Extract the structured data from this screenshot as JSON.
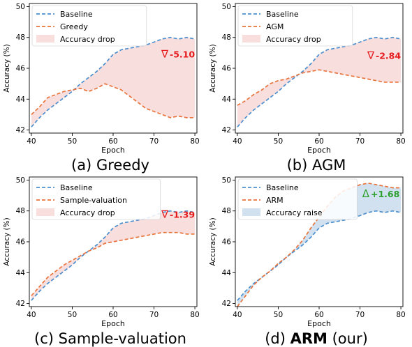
{
  "chart_data": [
    {
      "type": "line",
      "caption_tag": "(a)",
      "caption_text": "Greedy",
      "xlabel": "Epoch",
      "ylabel": "Accuracy (%)",
      "xlim": [
        39.5,
        80.5
      ],
      "ylim": [
        41.8,
        50.2
      ],
      "xticks": [
        "40",
        "50",
        "60",
        "70",
        "80"
      ],
      "yticks": [
        "42",
        "44",
        "46",
        "48",
        "50"
      ],
      "grid": false,
      "legend_position": "upper-left",
      "fill_label": "Accuracy drop",
      "fill_color": "#f9dede",
      "delta": {
        "text": "-5.10",
        "symbol": "∇",
        "color": "#e41a1c",
        "x": 73.5,
        "y": 46.7
      },
      "series": [
        {
          "name": "Baseline",
          "color": "#4c8fcf",
          "x": [
            40,
            42,
            44,
            46,
            48,
            50,
            52,
            54,
            56,
            58,
            60,
            62,
            64,
            66,
            68,
            70,
            72,
            74,
            76,
            78,
            80
          ],
          "y": [
            42.2,
            42.8,
            43.3,
            43.7,
            44.1,
            44.5,
            45.0,
            45.4,
            45.8,
            46.3,
            46.9,
            47.2,
            47.3,
            47.4,
            47.5,
            47.7,
            47.9,
            48.0,
            47.9,
            48.0,
            47.9
          ]
        },
        {
          "name": "Greedy",
          "color": "#e8743b",
          "x": [
            40,
            42,
            44,
            46,
            48,
            50,
            52,
            54,
            56,
            58,
            60,
            62,
            64,
            66,
            68,
            70,
            72,
            74,
            76,
            78,
            80
          ],
          "y": [
            43.0,
            43.5,
            44.1,
            44.3,
            44.5,
            44.6,
            44.7,
            44.5,
            44.7,
            45.0,
            44.8,
            44.6,
            44.2,
            43.8,
            43.4,
            43.2,
            43.0,
            42.8,
            42.9,
            42.8,
            42.8
          ]
        }
      ]
    },
    {
      "type": "line",
      "caption_tag": "(b)",
      "caption_text": "AGM",
      "xlabel": "Epoch",
      "ylabel": "Accuracy (%)",
      "xlim": [
        39.5,
        80.5
      ],
      "ylim": [
        41.8,
        50.2
      ],
      "xticks": [
        "40",
        "50",
        "60",
        "70",
        "80"
      ],
      "yticks": [
        "42",
        "44",
        "46",
        "48",
        "50"
      ],
      "grid": false,
      "legend_position": "upper-left",
      "fill_label": "Accuracy drop",
      "fill_color": "#f9dede",
      "delta": {
        "text": "-2.84",
        "symbol": "∇",
        "color": "#e41a1c",
        "x": 73.5,
        "y": 46.6
      },
      "series": [
        {
          "name": "Baseline",
          "color": "#4c8fcf",
          "x": [
            40,
            42,
            44,
            46,
            48,
            50,
            52,
            54,
            56,
            58,
            60,
            62,
            64,
            66,
            68,
            70,
            72,
            74,
            76,
            78,
            80
          ],
          "y": [
            42.2,
            42.8,
            43.3,
            43.7,
            44.1,
            44.5,
            45.0,
            45.4,
            45.8,
            46.3,
            46.9,
            47.2,
            47.3,
            47.4,
            47.5,
            47.7,
            47.9,
            48.0,
            47.9,
            48.0,
            47.9
          ]
        },
        {
          "name": "AGM",
          "color": "#e8743b",
          "x": [
            40,
            42,
            44,
            46,
            48,
            50,
            52,
            54,
            56,
            58,
            60,
            62,
            64,
            66,
            68,
            70,
            72,
            74,
            76,
            78,
            80
          ],
          "y": [
            43.6,
            43.9,
            44.3,
            44.6,
            45.0,
            45.2,
            45.3,
            45.5,
            45.7,
            45.8,
            45.9,
            45.8,
            45.7,
            45.6,
            45.5,
            45.4,
            45.3,
            45.2,
            45.1,
            45.1,
            45.1
          ]
        }
      ]
    },
    {
      "type": "line",
      "caption_tag": "(c)",
      "caption_text": "Sample-valuation",
      "xlabel": "Epoch",
      "ylabel": "Accuracy (%)",
      "xlim": [
        39.5,
        80.5
      ],
      "ylim": [
        41.8,
        50.2
      ],
      "xticks": [
        "40",
        "50",
        "60",
        "70",
        "80"
      ],
      "yticks": [
        "42",
        "44",
        "46",
        "48",
        "50"
      ],
      "grid": false,
      "legend_position": "upper-left",
      "fill_label": "Accuracy drop",
      "fill_color": "#f9dede",
      "delta": {
        "text": "-1.39",
        "symbol": "∇",
        "color": "#e41a1c",
        "x": 73.5,
        "y": 47.55
      },
      "series": [
        {
          "name": "Baseline",
          "color": "#4c8fcf",
          "x": [
            40,
            42,
            44,
            46,
            48,
            50,
            52,
            54,
            56,
            58,
            60,
            62,
            64,
            66,
            68,
            70,
            72,
            74,
            76,
            78,
            80
          ],
          "y": [
            42.2,
            42.8,
            43.3,
            43.7,
            44.1,
            44.5,
            45.0,
            45.4,
            45.8,
            46.3,
            46.9,
            47.2,
            47.3,
            47.4,
            47.5,
            47.7,
            47.9,
            48.0,
            47.9,
            48.0,
            47.9
          ]
        },
        {
          "name": "Sample-valuation",
          "color": "#e8743b",
          "x": [
            40,
            42,
            44,
            46,
            48,
            50,
            52,
            54,
            56,
            58,
            60,
            62,
            64,
            66,
            68,
            70,
            72,
            74,
            76,
            78,
            80
          ],
          "y": [
            42.5,
            43.1,
            43.7,
            44.1,
            44.5,
            44.8,
            45.1,
            45.4,
            45.6,
            45.9,
            46.0,
            46.1,
            46.2,
            46.3,
            46.4,
            46.5,
            46.6,
            46.6,
            46.6,
            46.5,
            46.5
          ]
        }
      ]
    },
    {
      "type": "line",
      "caption_tag": "(d)",
      "caption_text": "ARM",
      "caption_suffix": "(our)",
      "xlabel": "Epoch",
      "ylabel": "Accuracy (%)",
      "xlim": [
        39.5,
        80.5
      ],
      "ylim": [
        41.8,
        50.2
      ],
      "xticks": [
        "40",
        "50",
        "60",
        "70",
        "80"
      ],
      "yticks": [
        "42",
        "44",
        "46",
        "48",
        "50"
      ],
      "grid": false,
      "legend_position": "upper-left",
      "fill_label": "Accuracy raise",
      "fill_color": "#d2e1ef",
      "delta": {
        "text": "+1.68",
        "symbol": "Δ",
        "color": "#2ca02c",
        "x": 72.3,
        "y": 48.9
      },
      "series": [
        {
          "name": "Baseline",
          "color": "#4c8fcf",
          "x": [
            40,
            42,
            44,
            46,
            48,
            50,
            52,
            54,
            56,
            58,
            60,
            62,
            64,
            66,
            68,
            70,
            72,
            74,
            76,
            78,
            80
          ],
          "y": [
            42.2,
            42.8,
            43.3,
            43.7,
            44.1,
            44.5,
            45.0,
            45.4,
            45.8,
            46.3,
            46.9,
            47.2,
            47.3,
            47.4,
            47.5,
            47.7,
            47.9,
            48.0,
            47.9,
            48.0,
            47.9
          ]
        },
        {
          "name": "ARM",
          "color": "#e8743b",
          "x": [
            40,
            42,
            44,
            46,
            48,
            50,
            52,
            54,
            56,
            58,
            60,
            62,
            64,
            66,
            68,
            70,
            72,
            74,
            76,
            78,
            80
          ],
          "y": [
            41.8,
            42.5,
            43.2,
            43.7,
            44.1,
            44.6,
            45.0,
            45.5,
            46.1,
            46.9,
            47.6,
            48.3,
            48.9,
            49.3,
            49.5,
            49.7,
            49.8,
            49.7,
            49.6,
            49.5,
            49.5
          ]
        }
      ]
    }
  ]
}
